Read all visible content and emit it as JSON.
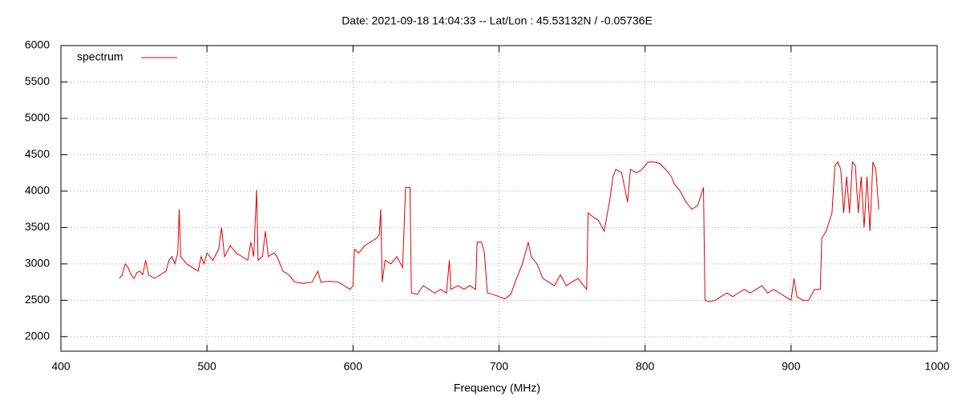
{
  "chart_data": {
    "type": "line",
    "title": "Date: 2021-09-18 14:04:33  --  Lat/Lon : 45.53132N / -0.05736E",
    "x_label": "Frequency (MHz)",
    "xlim": [
      400,
      1000
    ],
    "xticks": [
      400,
      500,
      600,
      700,
      800,
      900,
      1000
    ],
    "ylim": [
      1800,
      6000
    ],
    "yticks": [
      2000,
      2500,
      3000,
      3500,
      4000,
      4500,
      5000,
      5500,
      6000
    ],
    "grid": true,
    "legend": "top-left",
    "series": [
      {
        "name": "spectrum",
        "color": "#e00000",
        "x": [
          440,
          442,
          444,
          446,
          448,
          450,
          452,
          454,
          456,
          458,
          460,
          464,
          468,
          472,
          474,
          476,
          478,
          480,
          481,
          482,
          486,
          490,
          494,
          496,
          498,
          500,
          504,
          508,
          510,
          512,
          516,
          520,
          524,
          528,
          530,
          532,
          534,
          535,
          538,
          540,
          542,
          546,
          548,
          550,
          552,
          556,
          560,
          566,
          572,
          576,
          578,
          584,
          590,
          594,
          598,
          600,
          601,
          604,
          608,
          612,
          616,
          618,
          619,
          620,
          622,
          626,
          630,
          634,
          636,
          639,
          640,
          644,
          648,
          652,
          656,
          660,
          664,
          666,
          667,
          672,
          676,
          680,
          684,
          685,
          688,
          690,
          692,
          696,
          700,
          704,
          708,
          712,
          716,
          718,
          720,
          722,
          726,
          730,
          734,
          738,
          742,
          746,
          750,
          754,
          758,
          760,
          761,
          764,
          768,
          772,
          776,
          778,
          780,
          784,
          788,
          790,
          794,
          798,
          802,
          806,
          810,
          814,
          818,
          820,
          824,
          828,
          832,
          836,
          840,
          841,
          844,
          848,
          852,
          856,
          860,
          864,
          868,
          872,
          876,
          880,
          884,
          888,
          892,
          896,
          900,
          902,
          904,
          908,
          912,
          916,
          920,
          921,
          924,
          928,
          930,
          932,
          934,
          936,
          938,
          940,
          942,
          944,
          946,
          948,
          950,
          952,
          954,
          956,
          958,
          960
        ],
        "values": [
          2800,
          2850,
          3000,
          2950,
          2850,
          2800,
          2880,
          2900,
          2850,
          3050,
          2850,
          2800,
          2850,
          2900,
          3050,
          3100,
          3000,
          3150,
          3750,
          3100,
          3000,
          2950,
          2900,
          3100,
          3000,
          3150,
          3050,
          3200,
          3500,
          3100,
          3250,
          3150,
          3100,
          3050,
          3300,
          3100,
          4020,
          3050,
          3100,
          3450,
          3100,
          3150,
          3100,
          3000,
          2900,
          2850,
          2750,
          2730,
          2750,
          2900,
          2750,
          2760,
          2750,
          2700,
          2650,
          2700,
          3200,
          3150,
          3250,
          3300,
          3350,
          3400,
          3750,
          2750,
          3050,
          3000,
          3100,
          2950,
          4050,
          4050,
          2600,
          2580,
          2700,
          2650,
          2600,
          2650,
          2600,
          3050,
          2650,
          2700,
          2650,
          2700,
          2650,
          3300,
          3300,
          3150,
          2600,
          2580,
          2550,
          2520,
          2580,
          2800,
          3000,
          3150,
          3300,
          3100,
          3000,
          2800,
          2750,
          2700,
          2850,
          2700,
          2750,
          2800,
          2700,
          2650,
          3700,
          3650,
          3600,
          3450,
          3900,
          4200,
          4300,
          4250,
          3850,
          4300,
          4250,
          4300,
          4400,
          4400,
          4380,
          4300,
          4200,
          4100,
          4000,
          3850,
          3750,
          3800,
          4050,
          2500,
          2480,
          2500,
          2550,
          2600,
          2550,
          2600,
          2650,
          2600,
          2650,
          2700,
          2600,
          2650,
          2600,
          2550,
          2500,
          2800,
          2550,
          2500,
          2500,
          2650,
          2650,
          3350,
          3450,
          3700,
          4350,
          4400,
          4300,
          3700,
          4200,
          3700,
          4400,
          4350,
          3700,
          4200,
          3500,
          4200,
          3450,
          4400,
          4300,
          3750
        ]
      }
    ]
  }
}
